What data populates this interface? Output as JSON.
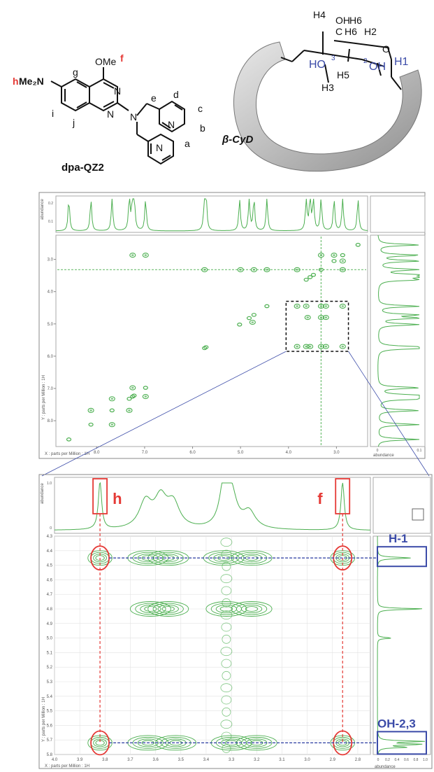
{
  "molecule": {
    "dpa": {
      "name": "dpa-QZ2",
      "atoms": {
        "me2n": "Me₂N",
        "n": "N",
        "ome": "OMe"
      },
      "labels": {
        "a": "a",
        "b": "b",
        "c": "c",
        "d": "d",
        "e": "e",
        "f": "f",
        "g": "g",
        "h": "h",
        "i": "i",
        "j": "j"
      }
    },
    "cyd": {
      "name": "β-CyD",
      "labels": {
        "h4": "H4",
        "oh": "OH",
        "h6a": "H6",
        "h6b": "H6",
        "h2": "H2",
        "c": "C",
        "o_ring": "O",
        "h1": "H1",
        "ho": "HO",
        "n3": "3",
        "n2": "2",
        "oh2": "OH",
        "h5": "H5",
        "h3": "H3"
      }
    }
  },
  "chart_data": [
    {
      "type": "heatmap",
      "subtype": "2D NMR contour plot",
      "xlabel": "X : parts per Million : 1H",
      "ylabel": "Y : parts per Million : 1H",
      "xlim": [
        8.85,
        2.35
      ],
      "ylim": [
        2.25,
        8.8
      ],
      "x_ticks": [
        "8.0",
        "7.0",
        "6.0",
        "5.0",
        "4.0",
        "3.0"
      ],
      "y_ticks": [
        "3.0",
        "4.0",
        "5.0",
        "6.0",
        "7.0",
        "8.0"
      ],
      "top_axis_label": "abundance",
      "top_axis_ticks": [
        "0.1",
        "0.2"
      ],
      "right_axis_label": "abundance",
      "right_axis_ticks": [
        "0",
        "0.1"
      ],
      "diagonal_peaks_ppm": [
        8.58,
        8.12,
        7.68,
        7.32,
        7.25,
        7.22,
        6.98,
        5.75,
        5.72,
        5.02,
        4.82,
        4.72,
        4.45,
        3.63,
        3.55,
        3.48,
        3.32,
        3.05,
        2.87,
        2.55
      ],
      "cross_peaks_ppm": [
        [
          3.82,
          5.7
        ],
        [
          3.63,
          5.7
        ],
        [
          3.55,
          5.7
        ],
        [
          3.32,
          5.7
        ],
        [
          3.22,
          5.7
        ],
        [
          2.87,
          5.7
        ],
        [
          3.82,
          4.45
        ],
        [
          3.63,
          4.45
        ],
        [
          3.32,
          4.45
        ],
        [
          3.22,
          4.45
        ],
        [
          2.87,
          4.45
        ],
        [
          3.6,
          4.8
        ],
        [
          3.32,
          4.8
        ],
        [
          3.22,
          4.8
        ],
        [
          4.75,
          4.95
        ],
        [
          5.75,
          3.32
        ],
        [
          5.0,
          3.32
        ],
        [
          4.72,
          3.32
        ],
        [
          4.45,
          3.32
        ],
        [
          3.82,
          3.32
        ],
        [
          2.87,
          3.32
        ],
        [
          7.25,
          2.87
        ],
        [
          6.98,
          2.87
        ],
        [
          8.12,
          7.68
        ],
        [
          7.68,
          8.12
        ],
        [
          7.32,
          7.68
        ],
        [
          7.68,
          7.32
        ],
        [
          3.32,
          2.87
        ],
        [
          2.87,
          3.05
        ],
        [
          3.05,
          2.87
        ],
        [
          6.98,
          7.25
        ],
        [
          7.25,
          6.98
        ]
      ],
      "zoom_region_ppm": {
        "x": [
          4.05,
          2.75
        ],
        "y": [
          4.3,
          5.85
        ]
      }
    },
    {
      "type": "heatmap",
      "subtype": "2D NMR contour plot (expanded region)",
      "xlabel": "X : parts per Million : 1H",
      "ylabel": "Y : parts per Million : 1H",
      "xlim": [
        4.0,
        2.75
      ],
      "ylim": [
        4.3,
        5.8
      ],
      "x_ticks": [
        "4.0",
        "3.9",
        "3.8",
        "3.7",
        "3.6",
        "3.5",
        "3.4",
        "3.3",
        "3.2",
        "3.1",
        "3.0",
        "2.9",
        "2.8"
      ],
      "y_ticks": [
        "4.3",
        "4.4",
        "4.5",
        "4.6",
        "4.7",
        "4.8",
        "4.9",
        "5.0",
        "5.1",
        "5.2",
        "5.3",
        "5.4",
        "5.5",
        "5.6",
        "5.7",
        "5.8"
      ],
      "top_axis_label": "abundance",
      "top_axis_ticks": [
        "0",
        "1.0"
      ],
      "right_axis_label": "abundance",
      "right_axis_ticks": [
        "0",
        "0.2",
        "0.4",
        "0.6",
        "0.8",
        "1.0"
      ],
      "peaks_ppm": [
        [
          3.82,
          4.45
        ],
        [
          3.63,
          4.45
        ],
        [
          3.55,
          4.45
        ],
        [
          3.33,
          4.45
        ],
        [
          3.22,
          4.45
        ],
        [
          2.86,
          4.45
        ],
        [
          3.62,
          4.8
        ],
        [
          3.55,
          4.8
        ],
        [
          3.32,
          4.8
        ],
        [
          3.22,
          4.8
        ],
        [
          3.82,
          5.72
        ],
        [
          3.63,
          5.72
        ],
        [
          3.52,
          5.72
        ],
        [
          3.3,
          5.72
        ],
        [
          3.2,
          5.72
        ],
        [
          2.86,
          5.72
        ]
      ],
      "row_ppm": {
        "H-1": 4.45,
        "OH-2,3": 5.72
      },
      "col_ppm": {
        "h": 3.82,
        "f": 2.86
      },
      "annotations": [
        "h",
        "f",
        "H-1",
        "OH-2,3"
      ],
      "colors": {
        "contour": "#4caf50",
        "highlight_red": "#e53935",
        "highlight_blue": "#3b4ba8",
        "axis": "#888888"
      }
    }
  ]
}
